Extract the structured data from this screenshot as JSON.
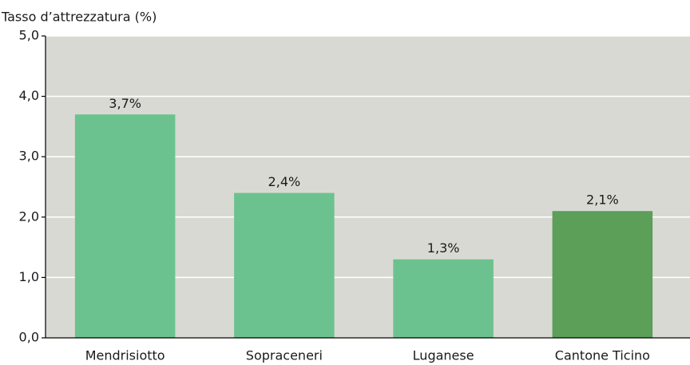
{
  "chart_data": {
    "type": "bar",
    "y_axis_label": "Tasso d’attrezzatura (%)",
    "categories": [
      "Mendrisiotto",
      "Sopraceneri",
      "Luganese",
      "Cantone Ticino"
    ],
    "values": [
      3.7,
      2.4,
      1.3,
      2.1
    ],
    "value_labels": [
      "3,7%",
      "2,4%",
      "1,3%",
      "2,1%"
    ],
    "colors": [
      "#6cc28e",
      "#6cc28e",
      "#6cc28e",
      "#5b9f58"
    ],
    "ylim": [
      0,
      5
    ],
    "yticks": [
      {
        "value": 0,
        "label": "0,0"
      },
      {
        "value": 1,
        "label": "1,0"
      },
      {
        "value": 2,
        "label": "2,0"
      },
      {
        "value": 3,
        "label": "3,0"
      },
      {
        "value": 4,
        "label": "4,0"
      },
      {
        "value": 5,
        "label": "5,0"
      }
    ],
    "grid": true
  }
}
